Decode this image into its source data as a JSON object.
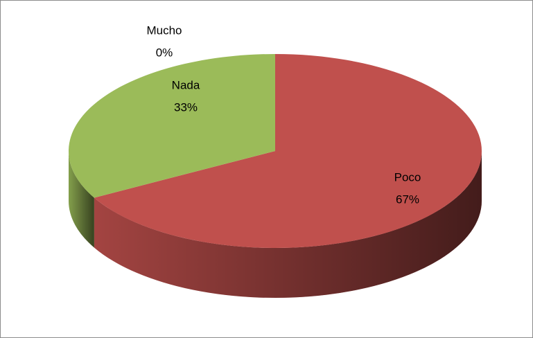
{
  "chart_data": {
    "type": "pie",
    "categories": [
      "Poco",
      "Nada",
      "Mucho"
    ],
    "values": [
      67,
      33,
      0
    ],
    "value_labels": [
      "67%",
      "33%",
      "0%"
    ],
    "colors": [
      "#c0504d",
      "#9bbb59",
      "#4f81bd"
    ]
  }
}
